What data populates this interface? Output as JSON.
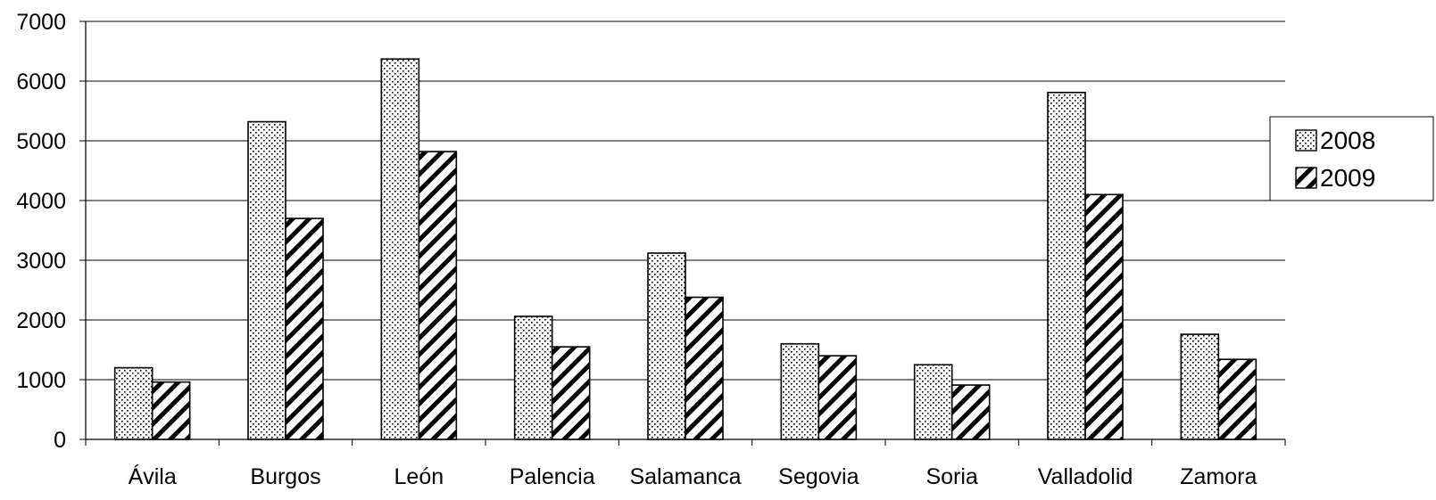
{
  "chart_data": {
    "type": "bar",
    "title": "",
    "xlabel": "",
    "ylabel": "",
    "ylim": [
      0,
      7000
    ],
    "yticks": [
      0,
      1000,
      2000,
      3000,
      4000,
      5000,
      6000,
      7000
    ],
    "yticks_text": [
      "0",
      "1000",
      "2000",
      "3000",
      "4000",
      "5000",
      "6000",
      "7000"
    ],
    "grid": true,
    "legend_position": "right",
    "categories": [
      "Ávila",
      "Burgos",
      "León",
      "Palencia",
      "Salamanca",
      "Segovia",
      "Soria",
      "Valladolid",
      "Zamora"
    ],
    "series": [
      {
        "name": "2008",
        "pattern": "dotted",
        "values": [
          1200,
          5320,
          6370,
          2060,
          3120,
          1600,
          1250,
          5810,
          1760
        ]
      },
      {
        "name": "2009",
        "pattern": "hatched",
        "values": [
          960,
          3700,
          4820,
          1550,
          2380,
          1400,
          910,
          4100,
          1340
        ]
      }
    ]
  }
}
